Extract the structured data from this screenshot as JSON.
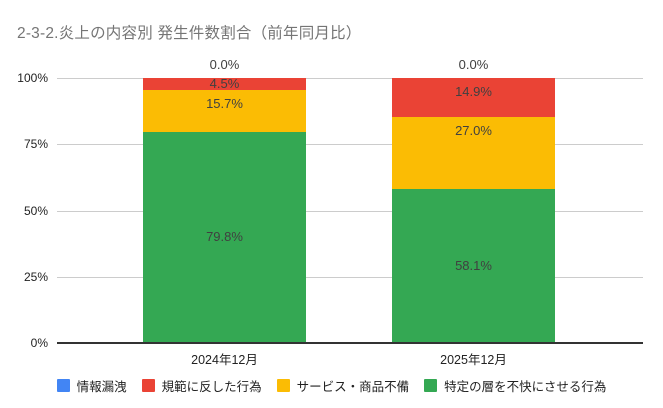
{
  "title": "2-3-2.炎上の内容別 発生件数割合（前年同月比）",
  "chart_data": {
    "type": "bar",
    "stacked": true,
    "percent_stacked": true,
    "title": "2-3-2.炎上の内容別 発生件数割合（前年同月比）",
    "categories": [
      "2024年12月",
      "2025年12月"
    ],
    "series": [
      {
        "name": "情報漏洩",
        "color": "#4285f4",
        "values": [
          0.0,
          0.0
        ]
      },
      {
        "name": "規範に反した行為",
        "color": "#ea4335",
        "values": [
          4.5,
          14.9
        ]
      },
      {
        "name": "サービス・商品不備",
        "color": "#fbbc04",
        "values": [
          15.7,
          27.0
        ]
      },
      {
        "name": "特定の層を不快にさせる行為",
        "color": "#34a853",
        "values": [
          79.8,
          58.1
        ]
      }
    ],
    "xlabel": "",
    "ylabel": "",
    "ylim": [
      0,
      100
    ],
    "yticks": [
      {
        "value": 0,
        "label": "0%"
      },
      {
        "value": 25,
        "label": "25%"
      },
      {
        "value": 50,
        "label": "50%"
      },
      {
        "value": 75,
        "label": "75%"
      },
      {
        "value": 100,
        "label": "100%"
      }
    ],
    "value_suffix": "%",
    "grid": true,
    "legend_position": "bottom"
  },
  "colors": {
    "background": "#ffffff",
    "title_text": "#757575",
    "axis_text": "#222222",
    "annotation_text": "#404040",
    "gridline": "#cccccc",
    "baseline": "#333333"
  }
}
